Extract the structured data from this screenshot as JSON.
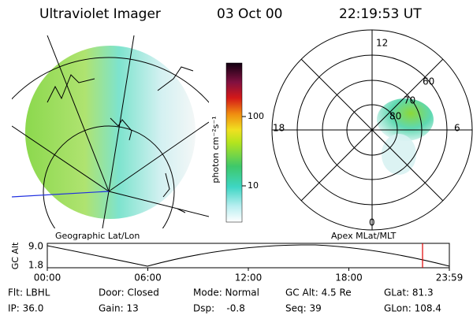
{
  "header": {
    "instrument": "Ultraviolet Imager",
    "date": "03 Oct 00",
    "time": "22:19:53 UT"
  },
  "map": {
    "title": "Geographic Lat/Lon"
  },
  "colorbar": {
    "label": "photon cm⁻²s⁻¹",
    "ticks": [
      "100",
      "10"
    ]
  },
  "polar": {
    "title": "Apex MLat/MLT",
    "hour_labels": [
      "12",
      "18",
      "6",
      "0"
    ],
    "lat_labels": [
      "60",
      "70",
      "80"
    ]
  },
  "altitude_plot": {
    "label": "GC Alt",
    "y_labels": [
      "9.0",
      "1.8"
    ],
    "x_labels": [
      "00:00",
      "06:00",
      "12:00",
      "18:00",
      "23:59"
    ]
  },
  "status": {
    "rows": [
      [
        "Flt: LBHL",
        "Door: Closed",
        "Mode: Normal",
        "GC Alt: 4.5 Re",
        "GLat: 81.3"
      ],
      [
        "IP: 36.0",
        "Gain: 13",
        "Dsp:    -0.8",
        "Seq: 39",
        "GLon: 108.4"
      ]
    ]
  }
}
